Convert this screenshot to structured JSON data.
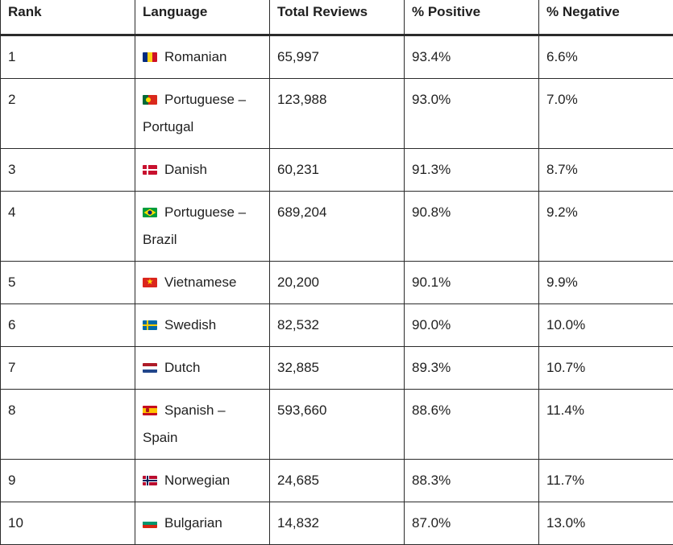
{
  "headers": {
    "rank": "Rank",
    "language": "Language",
    "total_reviews": "Total Reviews",
    "positive": "% Positive",
    "negative": "% Negative"
  },
  "rows": [
    {
      "rank": "1",
      "flag": "flag-romania-icon",
      "language": "Romanian",
      "total": "65,997",
      "positive": "93.4%",
      "negative": "6.6%"
    },
    {
      "rank": "2",
      "flag": "flag-portugal-icon",
      "language": "Portuguese – Portugal",
      "total": "123,988",
      "positive": "93.0%",
      "negative": "7.0%"
    },
    {
      "rank": "3",
      "flag": "flag-denmark-icon",
      "language": "Danish",
      "total": "60,231",
      "positive": "91.3%",
      "negative": "8.7%"
    },
    {
      "rank": "4",
      "flag": "flag-brazil-icon",
      "language": "Portuguese – Brazil",
      "total": "689,204",
      "positive": "90.8%",
      "negative": "9.2%"
    },
    {
      "rank": "5",
      "flag": "flag-vietnam-icon",
      "language": "Vietnamese",
      "total": "20,200",
      "positive": "90.1%",
      "negative": "9.9%"
    },
    {
      "rank": "6",
      "flag": "flag-sweden-icon",
      "language": "Swedish",
      "total": "82,532",
      "positive": "90.0%",
      "negative": "10.0%"
    },
    {
      "rank": "7",
      "flag": "flag-netherlands-icon",
      "language": "Dutch",
      "total": "32,885",
      "positive": "89.3%",
      "negative": "10.7%"
    },
    {
      "rank": "8",
      "flag": "flag-spain-icon",
      "language": "Spanish – Spain",
      "total": "593,660",
      "positive": "88.6%",
      "negative": "11.4%"
    },
    {
      "rank": "9",
      "flag": "flag-norway-icon",
      "language": "Norwegian",
      "total": "24,685",
      "positive": "88.3%",
      "negative": "11.7%"
    },
    {
      "rank": "10",
      "flag": "flag-bulgaria-icon",
      "language": "Bulgarian",
      "total": "14,832",
      "positive": "87.0%",
      "negative": "13.0%"
    }
  ]
}
